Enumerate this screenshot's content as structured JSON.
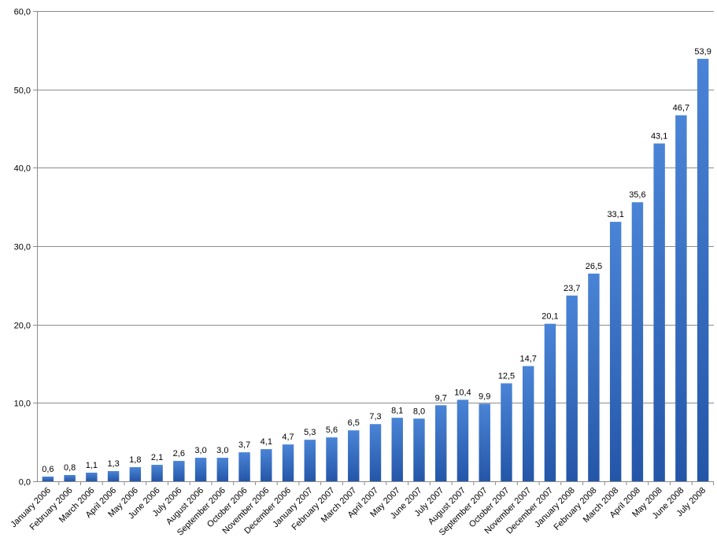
{
  "colors": {
    "bar_top": "#4a84d6",
    "bar_bottom": "#2456a8",
    "grid": "#8c8c8c",
    "axis": "#8c8c8c",
    "text": "#000000"
  },
  "chart_data": {
    "type": "bar",
    "title": "",
    "xlabel": "",
    "ylabel": "",
    "ylim": [
      0,
      60
    ],
    "yticks": [
      "0,0",
      "10,0",
      "20,0",
      "30,0",
      "40,0",
      "50,0",
      "60,0"
    ],
    "grid": true,
    "categories": [
      "January 2006",
      "February 2006",
      "March 2006",
      "April 2006",
      "May 2006",
      "June 2006",
      "July 2006",
      "August 2006",
      "September 2006",
      "October 2006",
      "November 2006",
      "December 2006",
      "January 2007",
      "February 2007",
      "March 2007",
      "April 2007",
      "May 2007",
      "June 2007",
      "July 2007",
      "August 2007",
      "September 2007",
      "October 2007",
      "November 2007",
      "December 2007",
      "January 2008",
      "February 2008",
      "March 2008",
      "April 2008",
      "May 2008",
      "June 2008",
      "July 2008"
    ],
    "values": [
      0.6,
      0.8,
      1.1,
      1.3,
      1.8,
      2.1,
      2.6,
      3.0,
      3.0,
      3.7,
      4.1,
      4.7,
      5.3,
      5.6,
      6.5,
      7.3,
      8.1,
      8.0,
      9.7,
      10.4,
      9.9,
      12.5,
      14.7,
      20.1,
      23.7,
      26.5,
      33.1,
      35.6,
      43.1,
      46.7,
      53.9
    ],
    "value_labels": [
      "0,6",
      "0,8",
      "1,1",
      "1,3",
      "1,8",
      "2,1",
      "2,6",
      "3,0",
      "3,0",
      "3,7",
      "4,1",
      "4,7",
      "5,3",
      "5,6",
      "6,5",
      "7,3",
      "8,1",
      "8,0",
      "9,7",
      "10,4",
      "9,9",
      "12,5",
      "14,7",
      "20,1",
      "23,7",
      "26,5",
      "33,1",
      "35,6",
      "43,1",
      "46,7",
      "53,9"
    ]
  }
}
